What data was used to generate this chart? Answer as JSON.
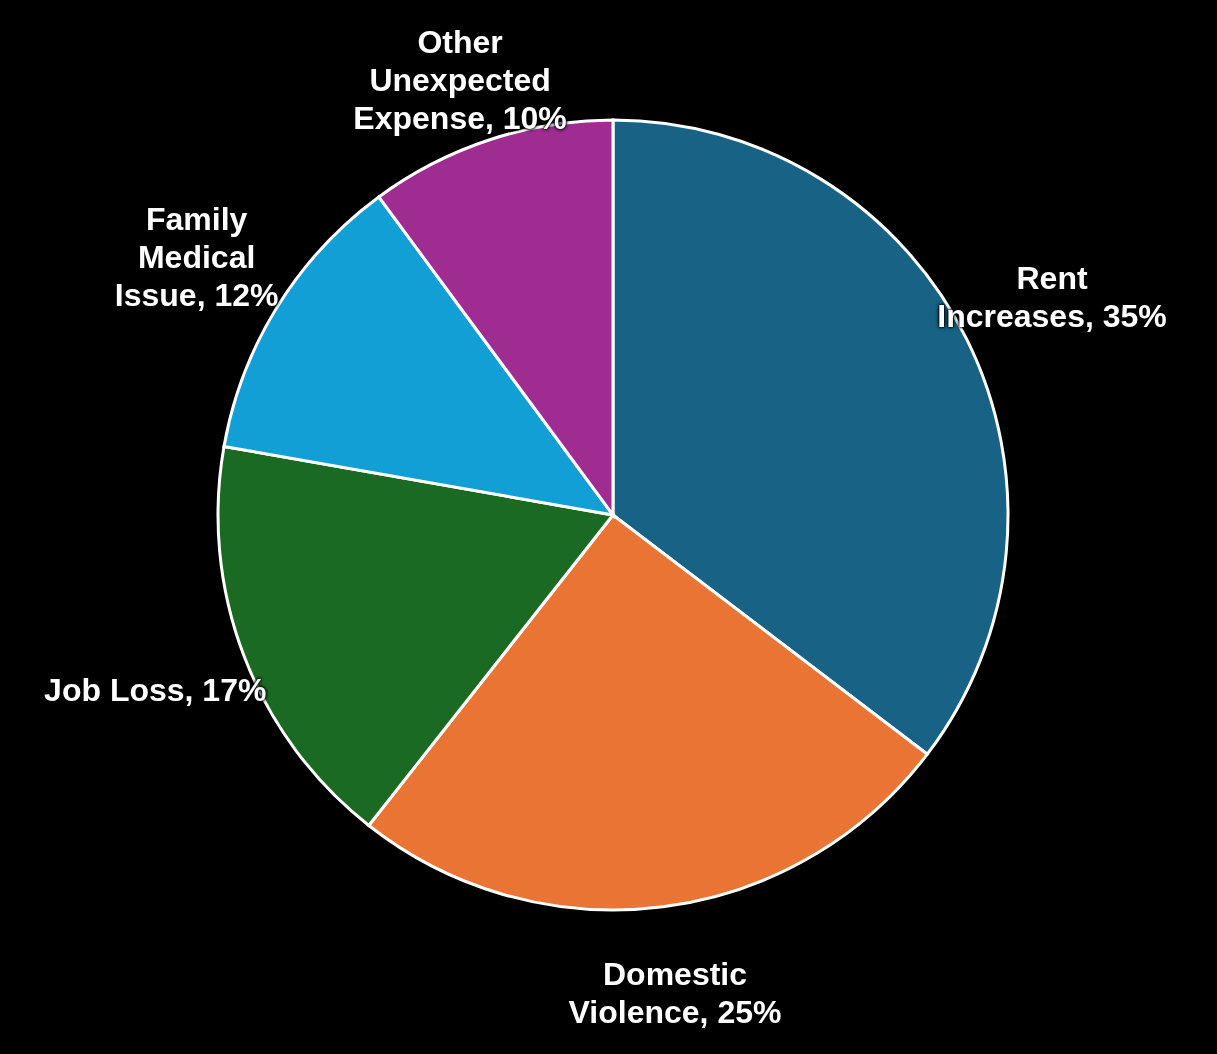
{
  "chart_data": {
    "type": "pie",
    "categories": [
      "Rent Increases",
      "Domestic Violence",
      "Job Loss",
      "Family Medical Issue",
      "Other Unexpected Expense"
    ],
    "values": [
      35,
      25,
      17,
      12,
      10
    ],
    "colors": [
      "#186285",
      "#e97434",
      "#1b6a24",
      "#129fd6",
      "#9e2c91"
    ],
    "value_labels": [
      "35%",
      "25%",
      "17%",
      "12%",
      "10%"
    ]
  }
}
